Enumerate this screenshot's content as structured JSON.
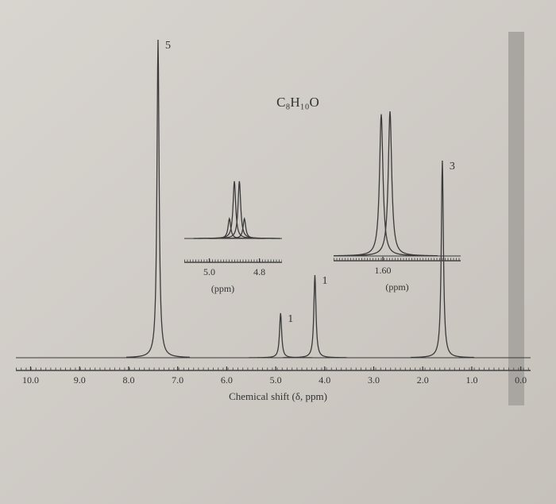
{
  "chart_data": {
    "type": "nmr",
    "title": "C₈H₁₀O",
    "x_label": "Chemical shift (δ, ppm)",
    "xlim": [
      10.3,
      -0.2
    ],
    "xticks": [
      {
        "value": 10,
        "label": "10.0"
      },
      {
        "value": 9,
        "label": "9.0"
      },
      {
        "value": 8,
        "label": "8.0"
      },
      {
        "value": 7,
        "label": "7.0"
      },
      {
        "value": 6,
        "label": "6.0"
      },
      {
        "value": 5,
        "label": "5.0"
      },
      {
        "value": 4,
        "label": "4.0"
      },
      {
        "value": 3,
        "label": "3.0"
      },
      {
        "value": 2,
        "label": "2.0"
      },
      {
        "value": 1,
        "label": "1.0"
      },
      {
        "value": 0,
        "label": "0.0"
      }
    ],
    "ylim": [
      0,
      100
    ],
    "color": "#3a3a3a",
    "peaks": [
      {
        "shift": 7.4,
        "height": 100,
        "label": "5"
      },
      {
        "shift": 4.9,
        "height": 14,
        "label": "1"
      },
      {
        "shift": 4.2,
        "height": 26,
        "label": "1"
      },
      {
        "shift": 1.6,
        "height": 62,
        "label": "3"
      }
    ],
    "insets": [
      {
        "x_label": "(ppm)",
        "xlim": [
          5.1,
          4.71
        ],
        "xticks": [
          {
            "value": 5,
            "label": "5.0"
          },
          4.8
        ],
        "ylim": [
          0,
          100
        ],
        "peaks": [
          {
            "shift": 4.92,
            "height": 25
          },
          {
            "shift": 4.9,
            "height": 72
          },
          {
            "shift": 4.88,
            "height": 72
          },
          {
            "shift": 4.86,
            "height": 25
          }
        ]
      },
      {
        "x_label": "(ppm)",
        "xlim": [
          1.724,
          1.404
        ],
        "xticks": [
          {
            "value": 1.6,
            "label": "1.60"
          }
        ],
        "ylim": [
          0,
          100
        ],
        "peaks": [
          {
            "shift": 1.604,
            "height": 98
          },
          {
            "shift": 1.582,
            "height": 100
          }
        ]
      }
    ]
  }
}
